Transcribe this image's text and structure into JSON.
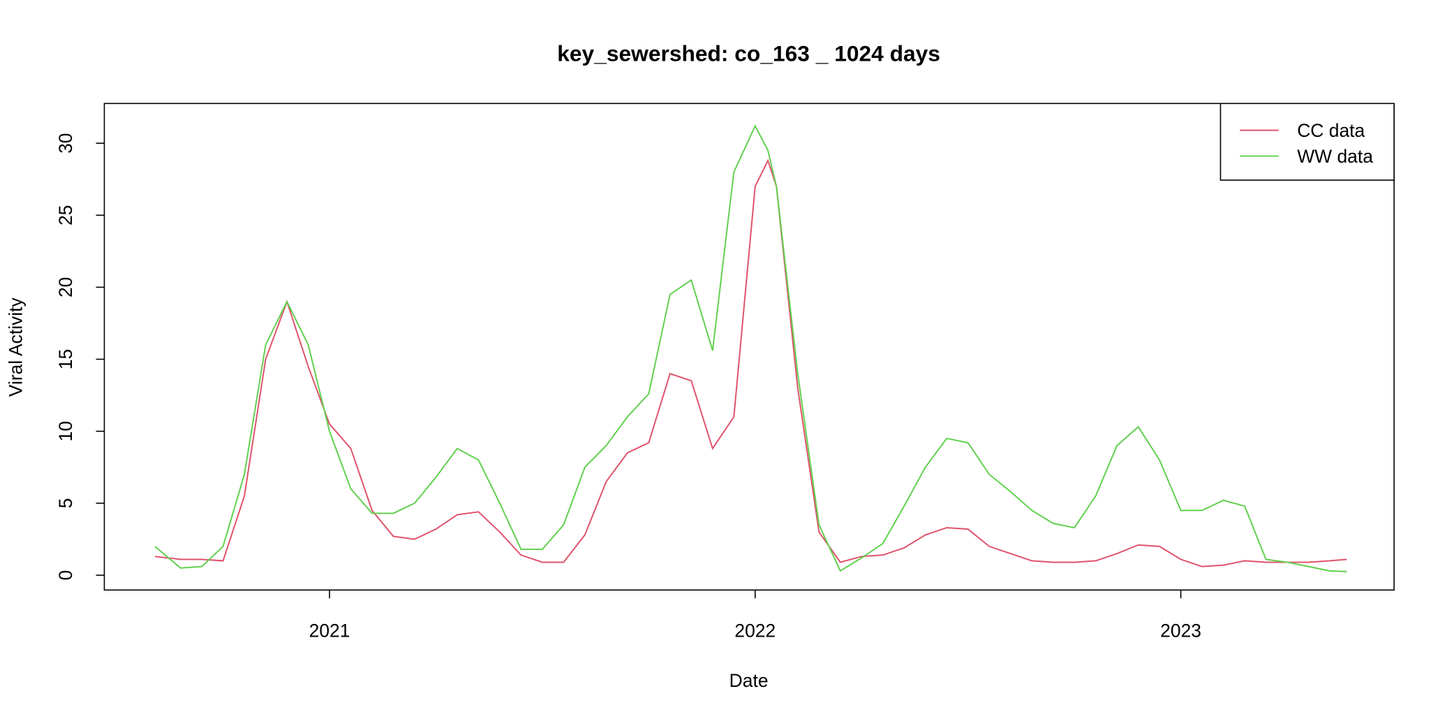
{
  "chart_data": {
    "type": "line",
    "title": "key_sewershed:  co_163 _ 1024  days",
    "x_label": "Date",
    "y_label": "Viral Activity",
    "x": [
      2020.59,
      2020.65,
      2020.7,
      2020.75,
      2020.8,
      2020.85,
      2020.9,
      2020.95,
      2021,
      2021.05,
      2021.1,
      2021.15,
      2021.2,
      2021.25,
      2021.3,
      2021.35,
      2021.4,
      2021.45,
      2021.5,
      2021.55,
      2021.6,
      2021.65,
      2021.7,
      2021.75,
      2021.8,
      2021.85,
      2021.9,
      2021.95,
      2022,
      2022.03,
      2022.05,
      2022.1,
      2022.15,
      2022.2,
      2022.25,
      2022.3,
      2022.35,
      2022.4,
      2022.45,
      2022.5,
      2022.55,
      2022.6,
      2022.65,
      2022.7,
      2022.75,
      2022.8,
      2022.85,
      2022.9,
      2022.95,
      2023,
      2023.05,
      2023.1,
      2023.15,
      2023.2,
      2023.25,
      2023.3,
      2023.35,
      2023.39
    ],
    "series": [
      {
        "name": "CC data",
        "color": "#DF536B",
        "values": [
          1.3,
          1.1,
          1.1,
          1.0,
          5.5,
          15,
          19,
          14.5,
          10.5,
          8.8,
          4.5,
          2.7,
          2.5,
          3.2,
          4.2,
          4.4,
          3.0,
          1.4,
          0.9,
          0.9,
          2.8,
          6.5,
          8.5,
          9.2,
          14.0,
          13.5,
          8.8,
          11,
          27,
          28.8,
          27,
          13,
          3,
          0.9,
          1.3,
          1.4,
          1.9,
          2.8,
          3.3,
          3.2,
          2.0,
          1.5,
          1.0,
          0.9,
          0.9,
          1.0,
          1.5,
          2.1,
          2.0,
          1.1,
          0.6,
          0.7,
          1.0,
          0.9,
          0.9,
          0.9,
          1.0,
          1.1
        ]
      },
      {
        "name": "WW data",
        "color": "#61D04F",
        "values": [
          2.0,
          0.5,
          0.6,
          2.0,
          7,
          16,
          19,
          16,
          10,
          6,
          4.3,
          4.3,
          5.0,
          6.8,
          8.8,
          8.0,
          5.0,
          1.8,
          1.8,
          3.5,
          7.5,
          9.0,
          11.0,
          12.6,
          19.5,
          20.5,
          15.6,
          28,
          31.2,
          29.5,
          27,
          14,
          3.5,
          0.3,
          1.2,
          2.2,
          4.8,
          7.5,
          9.5,
          9.2,
          7.0,
          5.8,
          4.5,
          3.6,
          3.3,
          5.5,
          9.0,
          10.3,
          8.0,
          4.5,
          4.5,
          5.2,
          4.8,
          1.1,
          0.9,
          0.6,
          0.3,
          0.25
        ]
      }
    ],
    "xlim": [
      2020.471,
      2023.501
    ],
    "xticks": [
      2021,
      2022,
      2023
    ],
    "ylim": [
      -1.03,
      32.76
    ],
    "yticks": [
      0,
      5,
      10,
      15,
      20,
      25,
      30
    ],
    "legend": "topright",
    "grid": false
  }
}
